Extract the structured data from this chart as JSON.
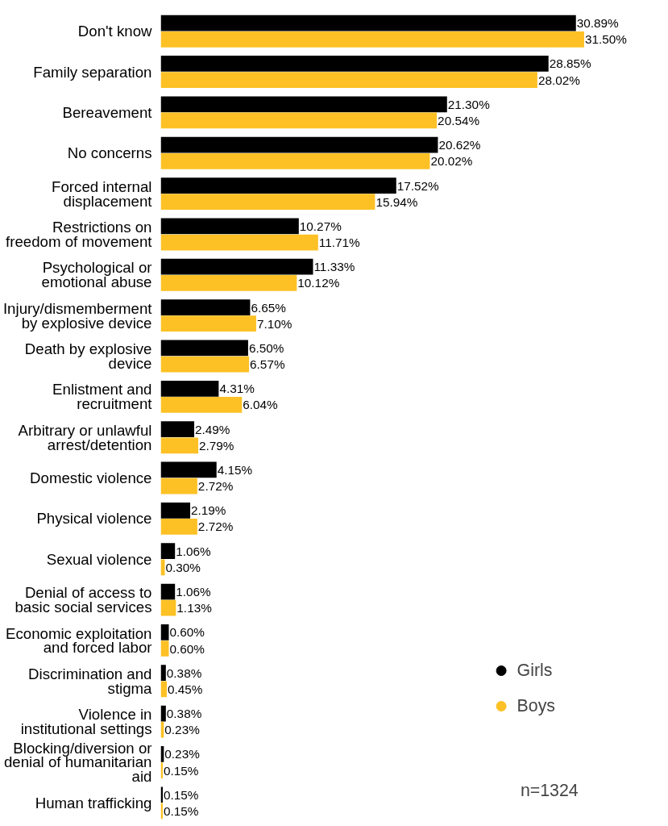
{
  "chart_data": {
    "type": "bar",
    "orientation": "horizontal",
    "categories": [
      "Don't know",
      "Family separation",
      "Bereavement",
      "No concerns",
      "Forced internal displacement",
      "Restrictions on freedom of movement",
      "Psychological or emotional abuse",
      "Injury/dismemberment by explosive device",
      "Death by explosive device",
      "Enlistment and recruitment",
      "Arbitrary or unlawful arrest/detention",
      "Domestic violence",
      "Physical violence",
      "Sexual violence",
      "Denial of access to basic social services",
      "Economic exploitation and forced labor",
      "Discrimination and stigma",
      "Violence in institutional settings",
      "Blocking/diversion or denial of humanitarian aid",
      "Human trafficking"
    ],
    "series": [
      {
        "name": "Girls",
        "color": "#000000",
        "values": [
          30.89,
          28.85,
          21.3,
          20.62,
          17.52,
          10.27,
          11.33,
          6.65,
          6.5,
          4.31,
          2.49,
          4.15,
          2.19,
          1.06,
          1.06,
          0.6,
          0.38,
          0.38,
          0.23,
          0.15
        ],
        "value_labels": [
          "30.89%",
          "28.85%",
          "21.30%",
          "20.62%",
          "17.52%",
          "10.27%",
          "11.33%",
          "6.65%",
          "6.50%",
          "4.31%",
          "2.49%",
          "4.15%",
          "2.19%",
          "1.06%",
          "1.06%",
          "0.60%",
          "0.38%",
          "0.38%",
          "0.23%",
          "0.15%"
        ]
      },
      {
        "name": "Boys",
        "color": "#fdc125",
        "values": [
          31.5,
          28.02,
          20.54,
          20.02,
          15.94,
          11.71,
          10.12,
          7.1,
          6.57,
          6.04,
          2.79,
          2.72,
          2.72,
          0.3,
          1.13,
          0.6,
          0.45,
          0.23,
          0.15,
          0.15
        ],
        "value_labels": [
          "31.50%",
          "28.02%",
          "20.54%",
          "20.02%",
          "15.94%",
          "11.71%",
          "10.12%",
          "7.10%",
          "6.57%",
          "6.04%",
          "2.79%",
          "2.72%",
          "2.72%",
          "0.30%",
          "1.13%",
          "0.60%",
          "0.45%",
          "0.23%",
          "0.15%",
          "0.15%"
        ]
      }
    ],
    "tick_labels": "y",
    "legend": "bottom right",
    "grid": false,
    "annotations": [
      "n=1324"
    ]
  }
}
